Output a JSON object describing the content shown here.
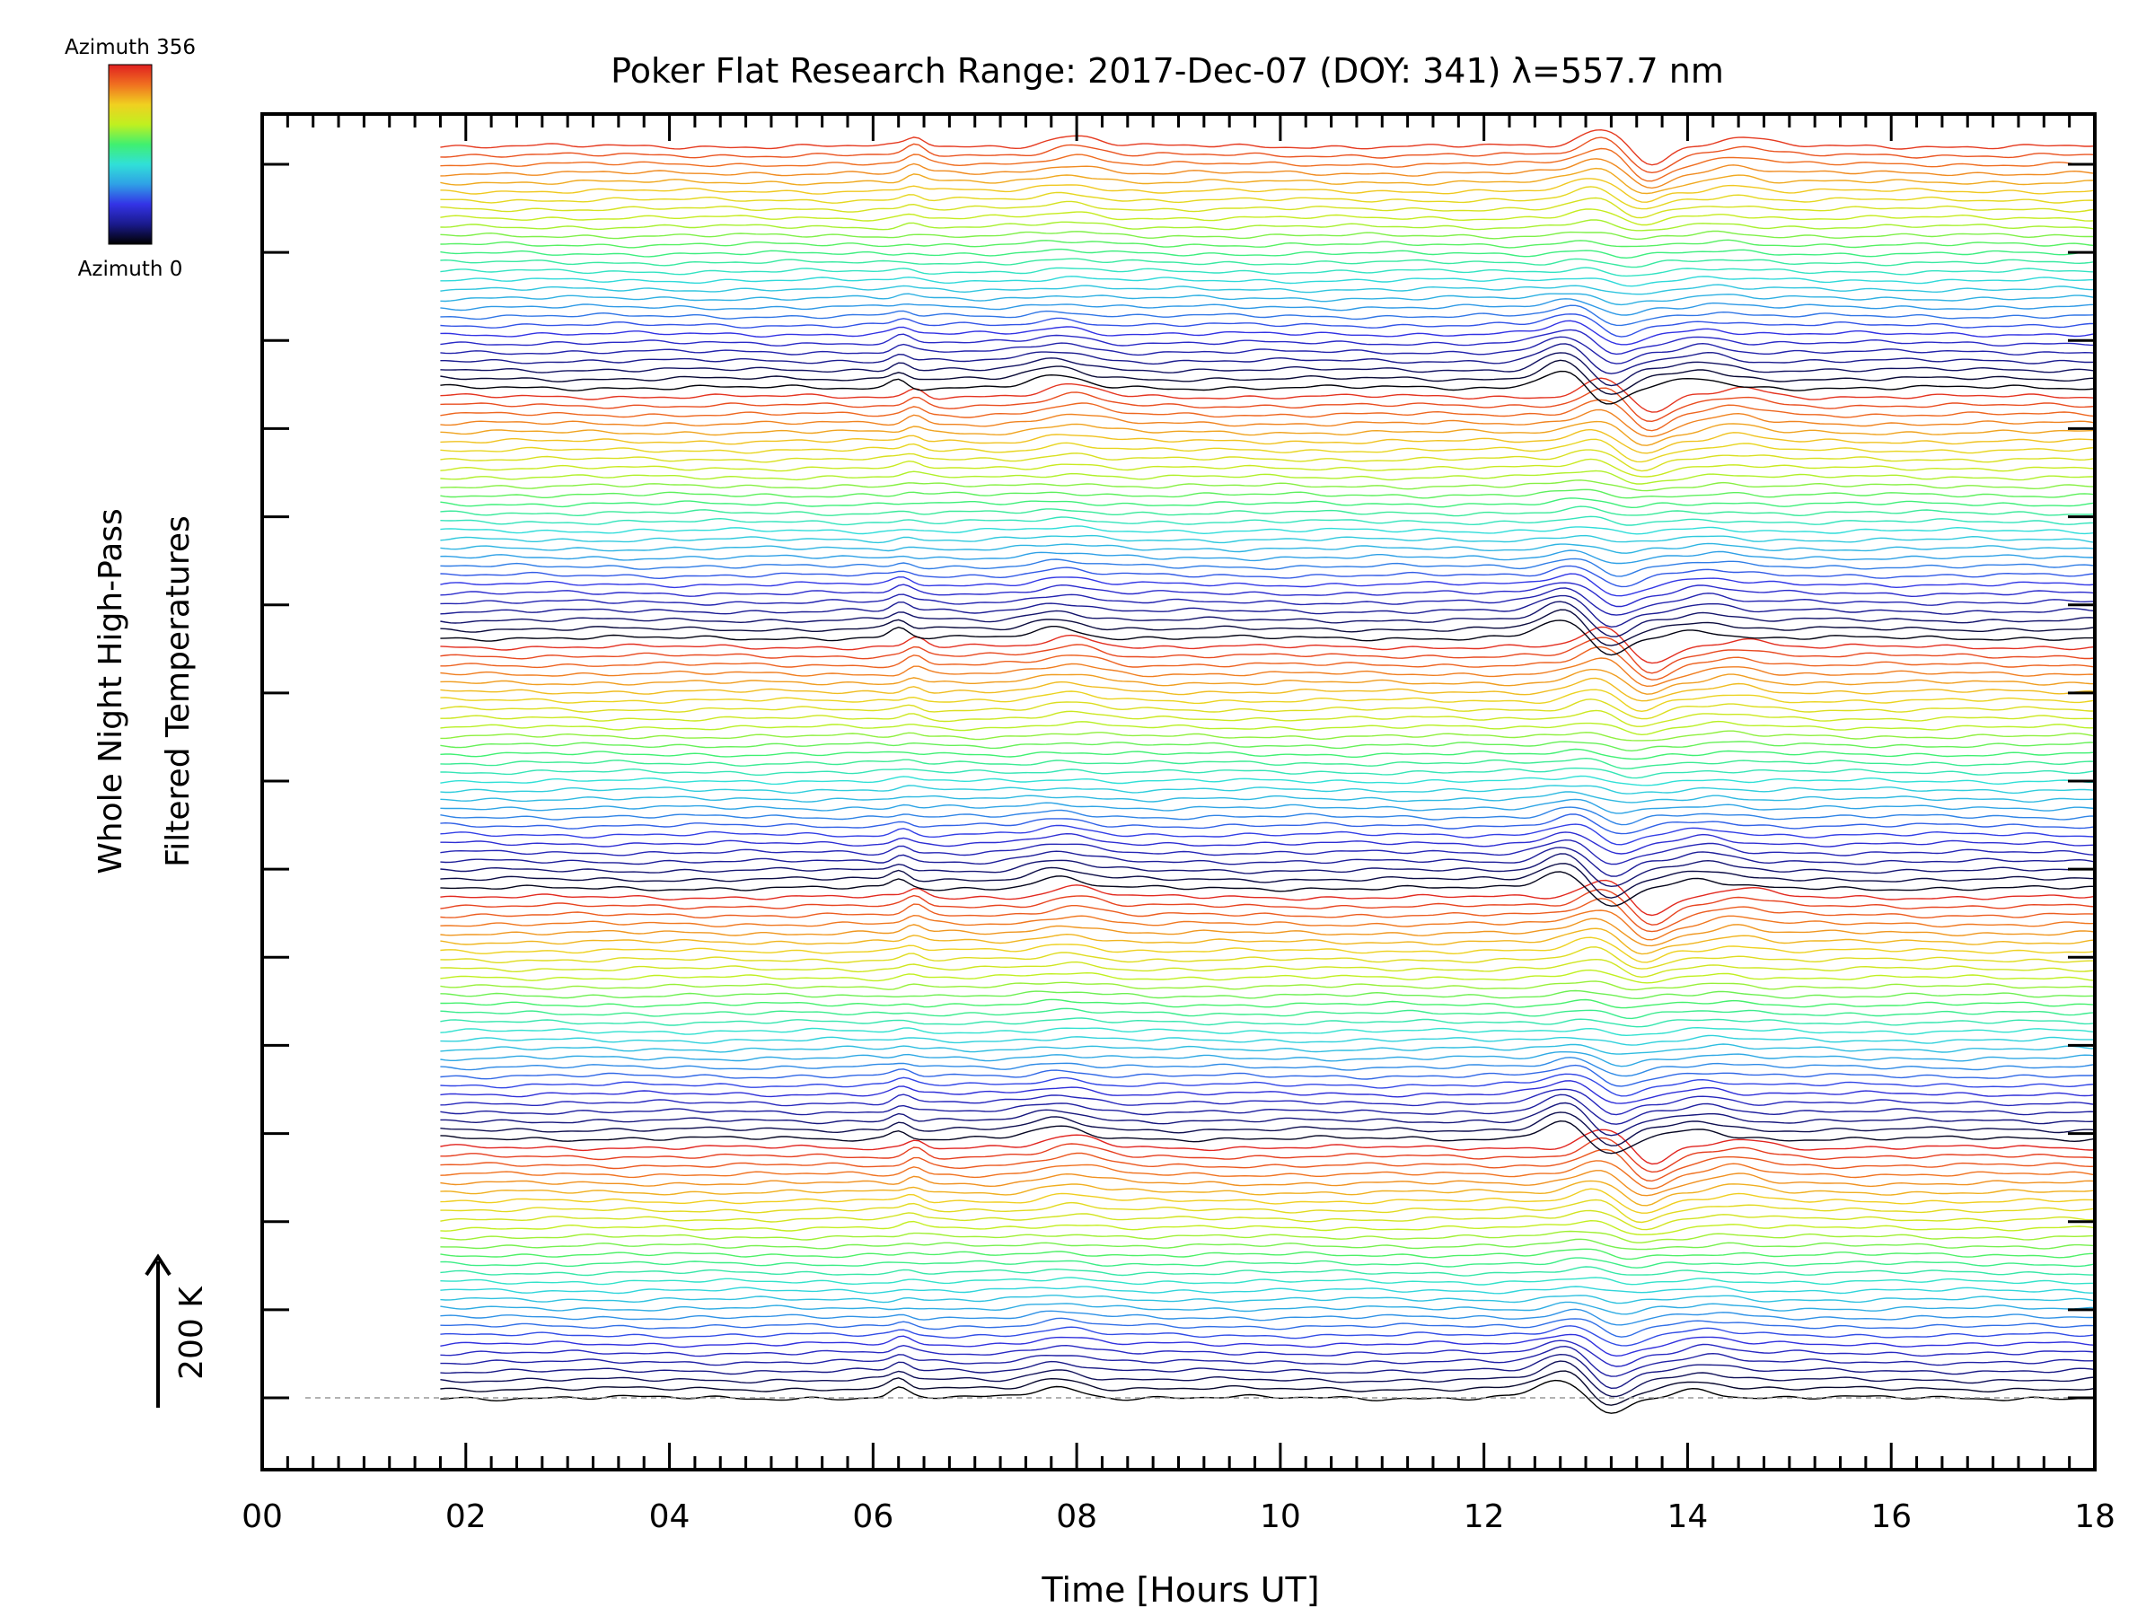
{
  "chart_data": {
    "type": "line",
    "title": "Poker Flat Research Range: 2017-Dec-07 (DOY: 341) λ=557.7 nm",
    "xlabel": "Time [Hours UT]",
    "ylabel_line1": "Whole Night High-Pass",
    "ylabel_line2": "Filtered Temperatures",
    "scale_label": "200 K",
    "x_unit": "hours UT",
    "xlim": [
      0,
      18
    ],
    "x_ticks": [
      "00",
      "02",
      "04",
      "06",
      "08",
      "10",
      "12",
      "14",
      "16",
      "18"
    ],
    "x_start": 1.75,
    "x_end": 18.0,
    "series_count": 141,
    "series_offset_K": 20,
    "grid": false,
    "colorbar": {
      "label_top": "Azimuth 356",
      "label_bottom": "Azimuth 0",
      "colors": [
        "#000000",
        "#1a1a8c",
        "#3333e6",
        "#2fa0e6",
        "#30e0d8",
        "#40f070",
        "#c0f020",
        "#f0d020",
        "#f07020",
        "#e02020"
      ]
    },
    "azimuth_cycles": 5,
    "features": [
      {
        "t": 6.25,
        "amp": 1.0,
        "width": 0.12
      },
      {
        "t": 7.8,
        "amp": 0.6,
        "width": 0.35
      },
      {
        "t": 12.75,
        "amp": 1.0,
        "width": 0.3
      },
      {
        "t": 13.2,
        "amp": -1.0,
        "width": 0.25
      },
      {
        "t": 14.1,
        "amp": 0.5,
        "width": 0.3
      }
    ]
  }
}
